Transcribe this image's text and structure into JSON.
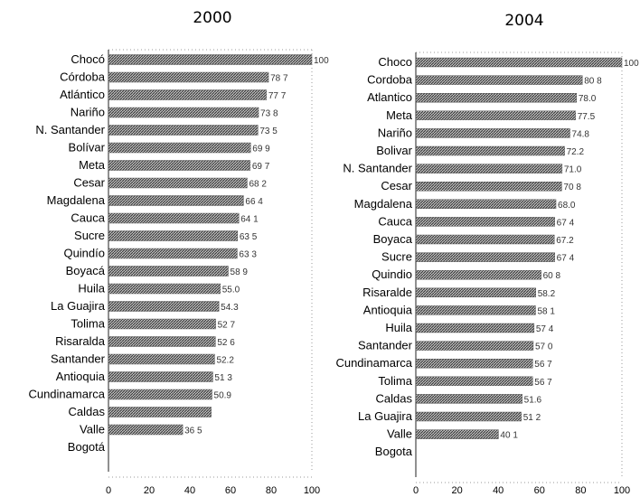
{
  "chart_data": [
    {
      "type": "bar",
      "orientation": "horizontal",
      "title": "2000",
      "xlim": [
        0,
        100
      ],
      "xticks": [
        "0",
        "20",
        "40",
        "60",
        "80",
        "100"
      ],
      "categories": [
        "Chocó",
        "Córdoba",
        "Atlántico",
        "Nariño",
        "N. Santander",
        "Bolívar",
        "Meta",
        "Cesar",
        "Magdalena",
        "Cauca",
        "Sucre",
        "Quindío",
        "Boyacá",
        "Huila",
        "La Guajira",
        "Tolima",
        "Risaralda",
        "Santander",
        "Antioquia",
        "Cundinamarca",
        "Caldas",
        "Valle",
        "Bogotá"
      ],
      "values": [
        100,
        78.7,
        77.7,
        73.8,
        73.5,
        69.9,
        69.7,
        68.2,
        66.4,
        64.1,
        63.5,
        63.3,
        58.9,
        55.0,
        54.3,
        52.7,
        52.6,
        52.2,
        51.3,
        50.9,
        50.5,
        36.5,
        0
      ],
      "value_labels": [
        "100",
        "78 7",
        "77 7",
        "73 8",
        "73 5",
        "69 9",
        "69 7",
        "68 2",
        "66 4",
        "64 1",
        "63 5",
        "63 3",
        "58 9",
        "55.0",
        "54.3",
        "52 7",
        "52 6",
        "52.2",
        "51 3",
        "50.9",
        "",
        "36 5",
        ""
      ]
    },
    {
      "type": "bar",
      "orientation": "horizontal",
      "title": "2004",
      "xlim": [
        0,
        100
      ],
      "xticks": [
        "0",
        "20",
        "40",
        "60",
        "80",
        "100"
      ],
      "categories": [
        "Choco",
        "Cordoba",
        "Atlantico",
        "Meta",
        "Nariño",
        "Bolivar",
        "N. Santander",
        "Cesar",
        "Magdalena",
        "Cauca",
        "Boyaca",
        "Sucre",
        "Quindio",
        "Risaralde",
        "Antioquia",
        "Huila",
        "Santander",
        "Cundinamarca",
        "Tolima",
        "Caldas",
        "La Guajira",
        "Valle",
        "Bogota"
      ],
      "values": [
        100,
        80.8,
        78.0,
        77.5,
        74.8,
        72.2,
        71.0,
        70.8,
        68.0,
        67.4,
        67.2,
        67.4,
        60.8,
        58.2,
        58.1,
        57.4,
        57.0,
        56.7,
        56.7,
        51.6,
        51.2,
        40.1,
        0
      ],
      "value_labels": [
        "100",
        "80 8",
        "78.0",
        "77.5",
        "74.8",
        "72.2",
        "71.0",
        "70 8",
        "68.0",
        "67 4",
        "67.2",
        "67 4",
        "60 8",
        "58.2",
        "58 1",
        "57 4",
        "57 0",
        "56 7",
        "56 7",
        "51.6",
        "51 2",
        "40 1",
        ""
      ]
    }
  ]
}
